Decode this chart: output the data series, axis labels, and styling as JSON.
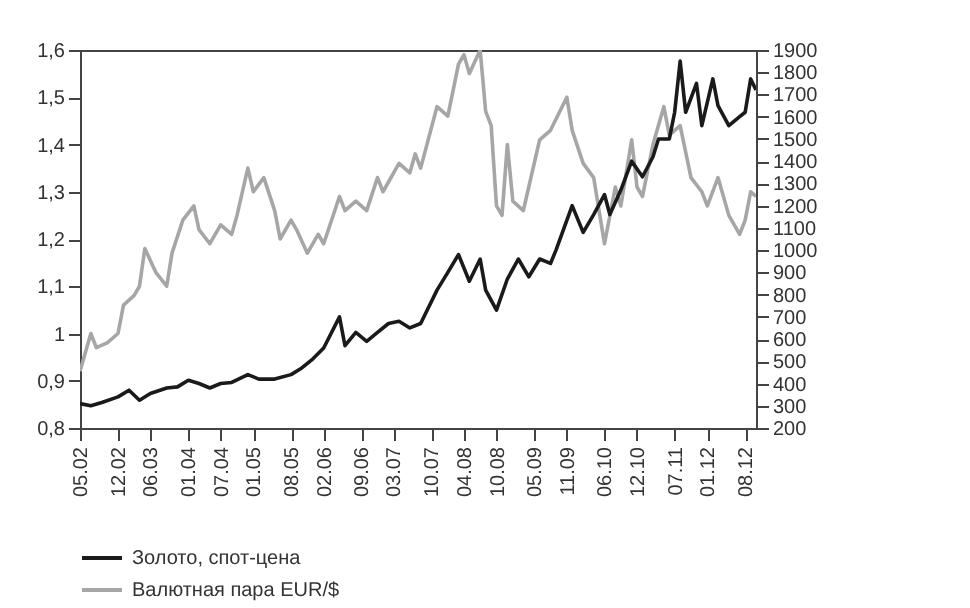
{
  "chart_data": {
    "type": "line",
    "legend": "bottom",
    "grid": false,
    "xlim": [
      "2002-05",
      "2012-10"
    ],
    "xticks": [
      {
        "value": "2002-05",
        "label": "05.02"
      },
      {
        "value": "2002-12",
        "label": "12.02"
      },
      {
        "value": "2003-06",
        "label": "06.03"
      },
      {
        "value": "2004-01",
        "label": "01.04"
      },
      {
        "value": "2004-07",
        "label": "07.04"
      },
      {
        "value": "2005-01",
        "label": "01.05"
      },
      {
        "value": "2005-08",
        "label": "08.05"
      },
      {
        "value": "2006-02",
        "label": "02.06"
      },
      {
        "value": "2006-09",
        "label": "09.06"
      },
      {
        "value": "2007-03",
        "label": "03.07"
      },
      {
        "value": "2007-10",
        "label": "10.07"
      },
      {
        "value": "2008-04",
        "label": "04.08"
      },
      {
        "value": "2008-10",
        "label": "10.08"
      },
      {
        "value": "2009-05",
        "label": "05.09"
      },
      {
        "value": "2009-11",
        "label": "11.09"
      },
      {
        "value": "2010-06",
        "label": "06.10"
      },
      {
        "value": "2010-12",
        "label": "12.10"
      },
      {
        "value": "2011-07",
        "label": "07.11"
      },
      {
        "value": "2012-01",
        "label": "01.12"
      },
      {
        "value": "2012-08",
        "label": "08.12"
      }
    ],
    "ylim": [
      0.8,
      1.6
    ],
    "yticks": [
      {
        "value": 0.8,
        "label": "0,8"
      },
      {
        "value": 0.9,
        "label": "0,9"
      },
      1,
      {
        "value": 1.1,
        "label": "1,1"
      },
      {
        "value": 1.2,
        "label": "1,2"
      },
      {
        "value": 1.3,
        "label": "1,3"
      },
      {
        "value": 1.4,
        "label": "1,4"
      },
      {
        "value": 1.5,
        "label": "1,5"
      },
      {
        "value": 1.6,
        "label": "1,6"
      }
    ],
    "y2lim": [
      200,
      1900
    ],
    "y2ticks": [
      200,
      300,
      400,
      500,
      600,
      700,
      800,
      900,
      1000,
      1100,
      1200,
      1300,
      1400,
      1500,
      1600,
      1700,
      1800,
      1900
    ],
    "series": [
      {
        "name": "Золото, спот-цена",
        "color": "#1a1a1a",
        "axis": "y2",
        "x": [
          "2002-05",
          "2002-07",
          "2002-09",
          "2002-12",
          "2003-02",
          "2003-04",
          "2003-06",
          "2003-09",
          "2003-11",
          "2004-01",
          "2004-03",
          "2004-05",
          "2004-07",
          "2004-09",
          "2004-12",
          "2005-02",
          "2005-05",
          "2005-08",
          "2005-10",
          "2005-12",
          "2006-02",
          "2006-05",
          "2006-06",
          "2006-08",
          "2006-10",
          "2006-12",
          "2007-02",
          "2007-04",
          "2007-06",
          "2007-08",
          "2007-11",
          "2008-01",
          "2008-03",
          "2008-05",
          "2008-07",
          "2008-08",
          "2008-10",
          "2008-12",
          "2009-02",
          "2009-04",
          "2009-06",
          "2009-08",
          "2009-09",
          "2009-12",
          "2010-02",
          "2010-04",
          "2010-06",
          "2010-07",
          "2010-09",
          "2010-11",
          "2011-01",
          "2011-03",
          "2011-04",
          "2011-06",
          "2011-07",
          "2011-08",
          "2011-09",
          "2011-11",
          "2011-12",
          "2012-02",
          "2012-03",
          "2012-05",
          "2012-07",
          "2012-08",
          "2012-09",
          "2012-10"
        ],
        "values": [
          310,
          300,
          315,
          340,
          370,
          325,
          355,
          380,
          385,
          415,
          400,
          380,
          400,
          405,
          440,
          420,
          420,
          440,
          470,
          510,
          560,
          700,
          570,
          630,
          590,
          630,
          670,
          680,
          650,
          670,
          820,
          900,
          980,
          860,
          960,
          820,
          730,
          870,
          960,
          880,
          960,
          940,
          1000,
          1200,
          1080,
          1160,
          1250,
          1160,
          1270,
          1400,
          1330,
          1420,
          1500,
          1500,
          1620,
          1850,
          1620,
          1750,
          1560,
          1770,
          1650,
          1560,
          1600,
          1620,
          1770,
          1720
        ]
      },
      {
        "name": "Валютная пара EUR/$",
        "color": "#a6a6a6",
        "x": [
          "2002-05",
          "2002-07",
          "2002-08",
          "2002-10",
          "2002-12",
          "2003-01",
          "2003-03",
          "2003-04",
          "2003-05",
          "2003-07",
          "2003-09",
          "2003-10",
          "2003-12",
          "2004-02",
          "2004-03",
          "2004-05",
          "2004-07",
          "2004-09",
          "2004-10",
          "2004-12",
          "2005-01",
          "2005-03",
          "2005-05",
          "2005-06",
          "2005-08",
          "2005-09",
          "2005-11",
          "2006-01",
          "2006-02",
          "2006-05",
          "2006-06",
          "2006-08",
          "2006-10",
          "2006-12",
          "2007-01",
          "2007-04",
          "2007-06",
          "2007-07",
          "2007-08",
          "2007-11",
          "2008-01",
          "2008-03",
          "2008-04",
          "2008-05",
          "2008-07",
          "2008-08",
          "2008-09",
          "2008-10",
          "2008-11",
          "2008-12",
          "2009-01",
          "2009-03",
          "2009-06",
          "2009-08",
          "2009-11",
          "2009-12",
          "2010-02",
          "2010-04",
          "2010-06",
          "2010-08",
          "2010-09",
          "2010-11",
          "2010-12",
          "2011-01",
          "2011-03",
          "2011-05",
          "2011-06",
          "2011-08",
          "2011-10",
          "2011-12",
          "2012-01",
          "2012-03",
          "2012-05",
          "2012-07",
          "2012-08",
          "2012-09",
          "2012-10"
        ],
        "values": [
          0.92,
          1.0,
          0.97,
          0.98,
          1.0,
          1.06,
          1.08,
          1.1,
          1.18,
          1.13,
          1.1,
          1.17,
          1.24,
          1.27,
          1.22,
          1.19,
          1.23,
          1.21,
          1.25,
          1.35,
          1.3,
          1.33,
          1.26,
          1.2,
          1.24,
          1.22,
          1.17,
          1.21,
          1.19,
          1.29,
          1.26,
          1.28,
          1.26,
          1.33,
          1.3,
          1.36,
          1.34,
          1.38,
          1.35,
          1.48,
          1.46,
          1.57,
          1.59,
          1.55,
          1.6,
          1.47,
          1.44,
          1.27,
          1.25,
          1.4,
          1.28,
          1.26,
          1.41,
          1.43,
          1.5,
          1.43,
          1.36,
          1.33,
          1.19,
          1.31,
          1.27,
          1.41,
          1.31,
          1.29,
          1.4,
          1.48,
          1.42,
          1.44,
          1.33,
          1.3,
          1.27,
          1.33,
          1.25,
          1.21,
          1.24,
          1.3,
          1.29
        ]
      }
    ]
  }
}
